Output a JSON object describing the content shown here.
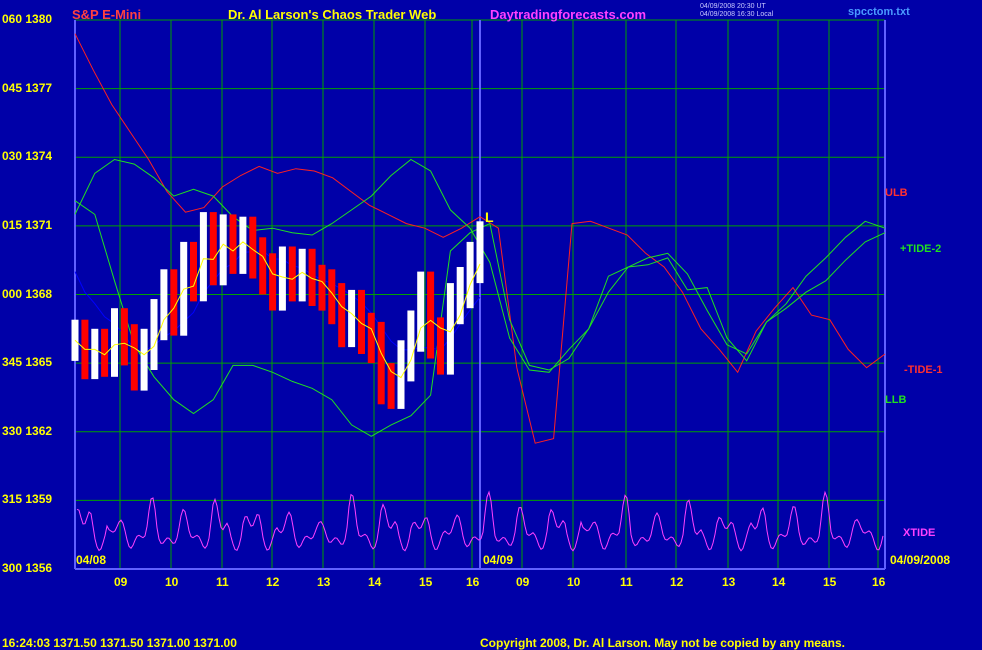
{
  "header": {
    "symbol": "S&P E-Mini",
    "title": "Dr. Al Larson's Chaos Trader Web",
    "site": "Daytradingforecasts.com",
    "stamp_line1": "04/09/2008 20:30 UT",
    "stamp_line2": "04/09/2008 16:30 Local",
    "file": "spcctom.txt"
  },
  "footer": {
    "quote": "16:24:03  1371.50 1371.50 1371.00 1371.00",
    "copyright": "Copyright 2008, Dr. Al Larson. May not be copied by any means."
  },
  "colors": {
    "background": "#0000a8",
    "grid": "#00a000",
    "price_down": "#ff0000",
    "price_up": "#ffffff",
    "ma_fast": "#ffff00",
    "ma_slow": "#0000ff",
    "ulb": "#ff2020",
    "llb": "#20e020",
    "xtide": "#ff40ff"
  },
  "chart_data": {
    "type": "line",
    "y_ticks": [
      "060 1380",
      "045 1377",
      "030 1374",
      "015 1371",
      "000 1368",
      "345 1365",
      "330 1362",
      "315 1359",
      "300 1356"
    ],
    "y_range": [
      1356,
      1380
    ],
    "x_ticks": [
      "09",
      "10",
      "11",
      "12",
      "13",
      "14",
      "15",
      "16",
      "09",
      "10",
      "11",
      "12",
      "13",
      "14",
      "15",
      "16"
    ],
    "date_labels": {
      "start": "04/08",
      "mid": "04/09",
      "end": "04/09/2008"
    },
    "marker": "L",
    "series_labels": {
      "ulb": "ULB",
      "tide2": "+TIDE-2",
      "tide1": "-TIDE-1",
      "llb": "LLB",
      "xtide": "XTIDE"
    },
    "price_close": [
      1366,
      1365.2,
      1365.6,
      1365.3,
      1366.5,
      1365.8,
      1364.7,
      1365.6,
      1366.9,
      1368.2,
      1367.1,
      1369.4,
      1368.6,
      1370.7,
      1369.3,
      1370.6,
      1369.8,
      1370.5,
      1369.6,
      1368.9,
      1368.2,
      1369.2,
      1368.6,
      1369.1,
      1368.4,
      1368.2,
      1367.6,
      1366.6,
      1367.3,
      1366.3,
      1365.9,
      1364.1,
      1363.9,
      1365.1,
      1366.4,
      1368.1,
      1366.1,
      1365.4,
      1367.6,
      1368.3,
      1369.4,
      1370.3
    ],
    "ulb": [
      1379.4,
      1377.8,
      1376.3,
      1375.1,
      1373.9,
      1372.5,
      1371.6,
      1371.8,
      1372.7,
      1373.2,
      1373.6,
      1373.3,
      1373.5,
      1373.4,
      1373.1,
      1372.5,
      1371.9,
      1371.5,
      1371.1,
      1370.9,
      1370.5,
      1370.9,
      1371.4,
      1370.9,
      1364.8,
      1361.5,
      1361.7,
      1371.1,
      1371.2,
      1370.9,
      1370.6,
      1369.8,
      1369.2,
      1368.1,
      1366.5,
      1365.6,
      1364.6,
      1366.4,
      1367.4,
      1368.3,
      1367.1,
      1366.9,
      1365.6,
      1364.8,
      1365.4
    ],
    "llb": [
      1372.1,
      1371.5,
      1368.6,
      1365.8,
      1364.4,
      1363.4,
      1362.8,
      1363.4,
      1364.9,
      1364.9,
      1364.6,
      1364.2,
      1363.9,
      1363.4,
      1362.3,
      1361.8,
      1362.3,
      1362.7,
      1363.6,
      1369.9,
      1370.7,
      1371.1,
      1366.9,
      1364.9,
      1364.7,
      1365.2,
      1366.5,
      1368.8,
      1369.2,
      1369.3,
      1369.6,
      1368.2,
      1368.3,
      1366.1,
      1365.1,
      1366.8,
      1367.6,
      1368.8,
      1369.6,
      1370.5,
      1371.2,
      1370.9
    ],
    "tide_upper": [
      1371.5,
      1373.3,
      1373.9,
      1373.7,
      1373.1,
      1372.3,
      1372.6,
      1372.3,
      1371.4,
      1370.8,
      1370.9,
      1370.7,
      1370.6,
      1371.1,
      1371.7,
      1372.3,
      1373.2,
      1373.9,
      1373.4,
      1371.7,
      1370.9,
      1369.4,
      1366.1,
      1364.7,
      1364.6,
      1365.6,
      1366.5,
      1368.1,
      1369.2,
      1369.6,
      1369.8,
      1368.9,
      1367.3,
      1365.8,
      1365.4,
      1366.8,
      1367.4,
      1368.1,
      1368.6,
      1369.5,
      1370.3,
      1370.7
    ],
    "xtide_amplitude": [
      1,
      0.4,
      0.9,
      0.6,
      1,
      0.8,
      0.6,
      0.3,
      1,
      0.9,
      0.6,
      0.5,
      1,
      0.7,
      0.8,
      0.4,
      1,
      0.5,
      0.9,
      0.6,
      0.8,
      0.7,
      1,
      0.4
    ]
  }
}
